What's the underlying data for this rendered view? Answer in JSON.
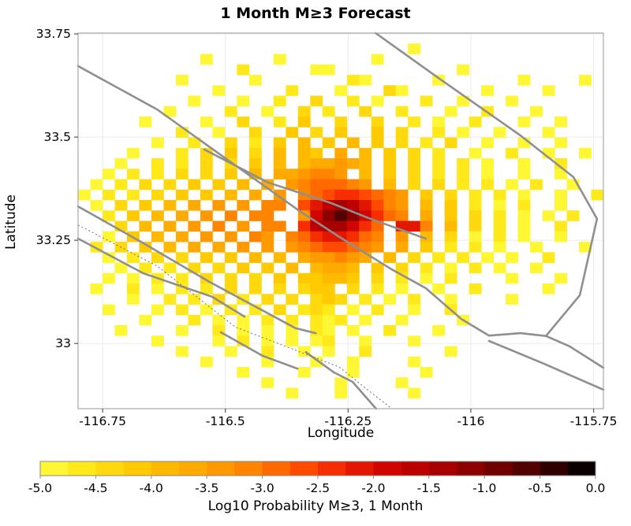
{
  "chart_data": {
    "type": "heatmap",
    "title": "1 Month M≥3 Forecast",
    "xlabel": "Longitude",
    "ylabel": "Latitude",
    "x_ticks": [
      -116.75,
      -116.5,
      -116.25,
      -116,
      -115.75
    ],
    "x_tick_labels": [
      "-116.75",
      "-116.5",
      "-116.25",
      "-116",
      "-115.75"
    ],
    "y_ticks": [
      33.75,
      33.5,
      33.25,
      33
    ],
    "y_tick_labels": [
      "33.75",
      "33.5",
      "33.25",
      "33"
    ],
    "lon_range": [
      -116.8,
      -115.73
    ],
    "lat_range": [
      32.842,
      33.752
    ],
    "grid": {
      "ncols": 43,
      "nrows": 36,
      "cell_deg": 0.025,
      "value_scale": "log10 probability, bins of 0.25 from -5.0 (a) to 0.0 (t), '.' = no data",
      "rows": [
        "...........................................",
        "...........................a...............",
        "..........a.....a.......a..................",
        ".............b.....aa..........a...........",
        "........a.....a.......ba.....a......a....a.",
        "...........a.....b...a...ca......a....a....",
        ".........a...a..b..c..b.a...b..a...a.......",
        ".......a....b..a..c.b..c..b...a..b...a.....",
        ".....a....a..c..b.d..c..c..b.a..b...a..a...",
        "........b..a..c..d.c.d..d.c..b.a..a...a....",
        "......a..b..c.b.d.e.d.e.d.c.b.c..a..a..a...",
        "....a...b.c.d.c.e.ed.f.e.d.c.b..a..b..a..a.",
        "...a..b.b.c.c.d.e.effgfe.d.c.b.b.a..a..b...",
        "..a.b.b.c.c.d.e.ffghhg.e.d.c.b.b.a..a..a...",
        ".a.b.c.c.d.d.e.f.ghiiihg.e.c.c.b.b.a.b..a..",
        "a.b.b.c.d.d.e.f.g.hijkkjihg.d.c.b.b.a..a..b",
        ".a.c.d.e.f.g.g.hh.jlnonljhg.e.d.b.a.b..a...",
        "..b.d.e.f.g.h.hh..gmprpmkih.f.d.c.b.a.a.b..",
        "...c.e.f.g.h.g.hh.knoomki.llh.e.c.b.a..b...",
        "..a.d.e.f.g.g.hg.hikllkih.g.e.c.a.b.a..a...",
        ".b.c.d.e.f.f.g.g.ghijjihg.f.d.b.b.a..a...a.",
        "..a.b.c.c.d.d.e.e.fgghgf.e.c.b.b.a.a..b....",
        "...a.b.b.c.c.d.d.e.effe.d.c.b.a.b.a..a.....",
        "..a.a.b.b.c.c.c.d.ddeed.c.b.a.b....a...a...",
        ".a..b.a.b.b.c.c.c.cdd.c.b.a..a..b.....a....",
        "....a..b.b.c.b.c.c.cdc.b.a.b..a....a.......",
        "..a...a.b.a.b.b.c.bcb.a.b..a..b............",
        ".....a...b.a.a.b.b.bab.a..a....a...........",
        "...a....a..b.a.a.a.ba.a..b...a.............",
        "......a....a.b.a.a.ab..a...a...............",
        "........a...a..b..a.a..b......a............",
        "..........a....a...a..a....a...............",
        ".............a....a...a.....a..............",
        "...............a.....a....a................",
        ".................a...a.....a...............",
        "..........................................."
      ]
    },
    "palette": [
      "#fff733",
      "#ffe91a",
      "#ffd90d",
      "#ffca00",
      "#ffba00",
      "#ffaa00",
      "#ff9900",
      "#ff8400",
      "#ff6a00",
      "#ff4a00",
      "#f52d00",
      "#e31700",
      "#d00500",
      "#bc0000",
      "#a60000",
      "#8c0000",
      "#700000",
      "#520000",
      "#300000",
      "#0a0000"
    ],
    "fault_lines": {
      "color": "#8f8f8f",
      "solid": [
        [
          [
            -116.8,
            33.672
          ],
          [
            -116.639,
            33.567
          ],
          [
            -116.479,
            33.431
          ],
          [
            -116.349,
            33.321
          ],
          [
            -116.265,
            33.256
          ],
          [
            -116.162,
            33.18
          ],
          [
            -116.092,
            33.134
          ],
          [
            -116.019,
            33.059
          ],
          [
            -115.963,
            33.019
          ],
          [
            -115.899,
            33.025
          ],
          [
            -115.847,
            33.018
          ],
          [
            -115.799,
            32.993
          ],
          [
            -115.73,
            32.941
          ]
        ],
        [
          [
            -116.543,
            33.47
          ],
          [
            -116.413,
            33.39
          ],
          [
            -116.284,
            33.34
          ],
          [
            -116.209,
            33.304
          ],
          [
            -116.092,
            33.254
          ]
        ],
        [
          [
            -116.194,
            33.752
          ],
          [
            -116.066,
            33.643
          ],
          [
            -115.899,
            33.504
          ],
          [
            -115.791,
            33.403
          ],
          [
            -115.743,
            33.302
          ],
          [
            -115.778,
            33.117
          ],
          [
            -115.847,
            33.018
          ]
        ],
        [
          [
            -116.8,
            33.332
          ],
          [
            -116.67,
            33.245
          ],
          [
            -116.532,
            33.149
          ],
          [
            -116.357,
            33.037
          ],
          [
            -116.316,
            33.025
          ]
        ],
        [
          [
            -116.8,
            33.254
          ],
          [
            -116.667,
            33.17
          ],
          [
            -116.527,
            33.113
          ],
          [
            -116.461,
            33.065
          ]
        ],
        [
          [
            -116.509,
            33.027
          ],
          [
            -116.424,
            32.97
          ],
          [
            -116.353,
            32.939
          ]
        ],
        [
          [
            -116.336,
            32.979
          ],
          [
            -116.279,
            32.93
          ],
          [
            -116.241,
            32.907
          ],
          [
            -116.193,
            32.842
          ]
        ],
        [
          [
            -115.963,
            33.006
          ],
          [
            -115.851,
            32.951
          ],
          [
            -115.73,
            32.888
          ]
        ]
      ],
      "dotted": [
        [
          [
            -116.8,
            33.287
          ],
          [
            -116.638,
            33.187
          ],
          [
            -116.48,
            33.04
          ],
          [
            -116.336,
            32.974
          ],
          [
            -116.268,
            32.943
          ],
          [
            -116.22,
            32.897
          ],
          [
            -116.161,
            32.842
          ]
        ]
      ]
    },
    "colorbar": {
      "label": "Log10 Probability M≥3, 1 Month",
      "tick_labels": [
        "-5.0",
        "-4.5",
        "-4.0",
        "-3.5",
        "-3.0",
        "-2.5",
        "-2.0",
        "-1.5",
        "-1.0",
        "-0.5",
        "0.0"
      ],
      "range": [
        -5.0,
        0.0
      ],
      "n_segments": 20,
      "orientation": "horizontal"
    },
    "legend": null,
    "grid_lines": "light gray at tick positions"
  }
}
